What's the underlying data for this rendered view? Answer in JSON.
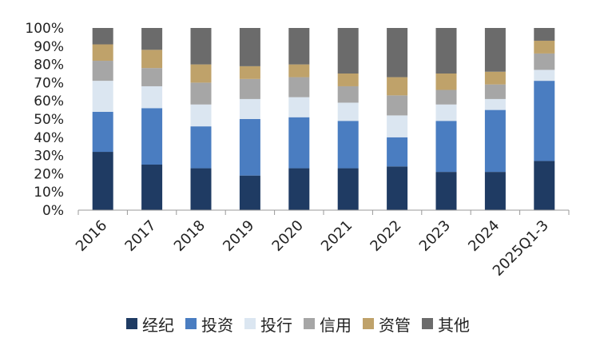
{
  "chart_data": {
    "type": "bar",
    "stacked": true,
    "categories": [
      "2016",
      "2017",
      "2018",
      "2019",
      "2020",
      "2021",
      "2022",
      "2023",
      "2024",
      "2025Q1-3"
    ],
    "ylim": [
      0,
      100
    ],
    "yticks": [
      "0%",
      "10%",
      "20%",
      "30%",
      "40%",
      "50%",
      "60%",
      "70%",
      "80%",
      "90%",
      "100%"
    ],
    "series": [
      {
        "name": "经纪",
        "color": "#1f3b63",
        "values": [
          32,
          25,
          23,
          19,
          23,
          23,
          24,
          21,
          21,
          27
        ]
      },
      {
        "name": "投资",
        "color": "#4a7dc1",
        "values": [
          22,
          31,
          23,
          31,
          28,
          26,
          16,
          28,
          34,
          44
        ]
      },
      {
        "name": "投行",
        "color": "#dbe6f1",
        "values": [
          17,
          12,
          12,
          11,
          11,
          10,
          12,
          9,
          6,
          6
        ]
      },
      {
        "name": "信用",
        "color": "#a6a6a6",
        "values": [
          11,
          10,
          12,
          11,
          11,
          9,
          11,
          8,
          8,
          9
        ]
      },
      {
        "name": "资管",
        "color": "#bfa26a",
        "values": [
          9,
          10,
          10,
          7,
          7,
          7,
          10,
          9,
          7,
          7
        ]
      },
      {
        "name": "其他",
        "color": "#6b6b6b",
        "values": [
          9,
          12,
          20,
          21,
          20,
          25,
          27,
          25,
          24,
          7
        ]
      }
    ],
    "legend_position": "bottom",
    "grid": false
  }
}
